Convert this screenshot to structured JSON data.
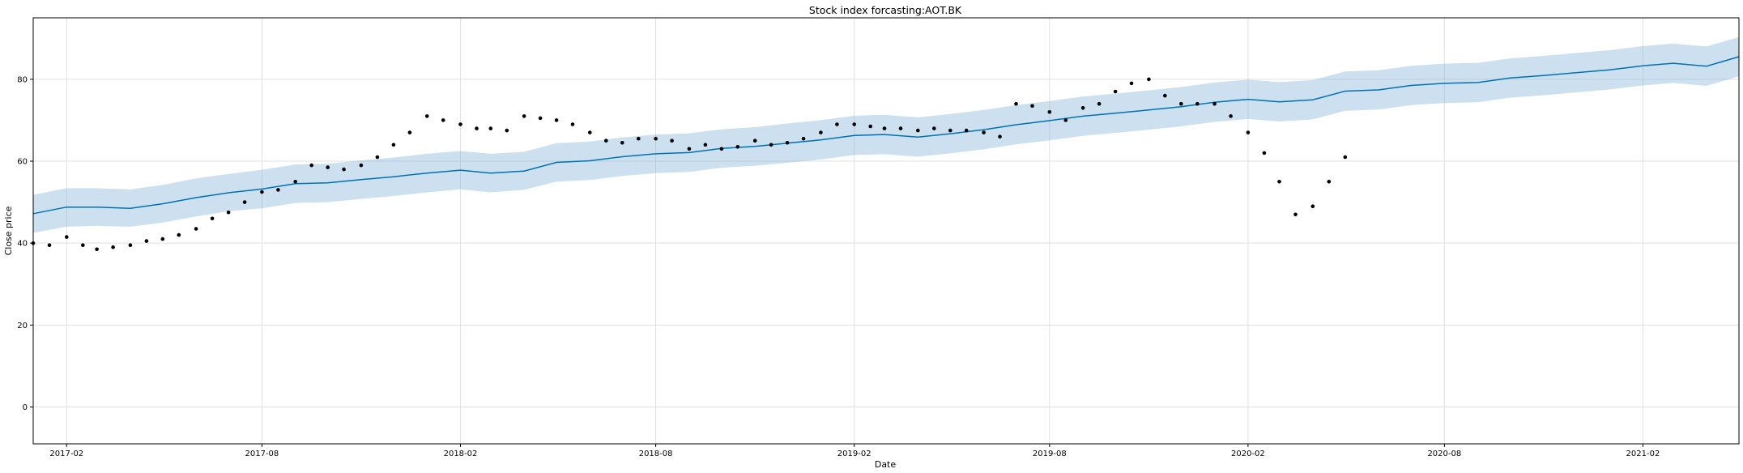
{
  "chart_data": {
    "type": "scatter",
    "title": "Stock index forcasting:AOT.BK",
    "xlabel": "Date",
    "ylabel": "Close price",
    "grid": true,
    "xlim": [
      "2017-01-01",
      "2021-05-01"
    ],
    "ylim": [
      -9,
      95
    ],
    "x_ticks": [
      "2017-02",
      "2017-08",
      "2018-02",
      "2018-08",
      "2019-02",
      "2019-08",
      "2020-02",
      "2020-08",
      "2021-02"
    ],
    "y_ticks": [
      0,
      20,
      40,
      60,
      80
    ],
    "colors": {
      "observed": "#000000",
      "forecast": "#0072B2",
      "interval": "#7FB2D8"
    },
    "observed": {
      "dates": [
        "2017-01-01",
        "2017-01-16",
        "2017-02-01",
        "2017-02-16",
        "2017-03-01",
        "2017-03-16",
        "2017-04-01",
        "2017-04-16",
        "2017-05-01",
        "2017-05-16",
        "2017-06-01",
        "2017-06-16",
        "2017-07-01",
        "2017-07-16",
        "2017-08-01",
        "2017-08-16",
        "2017-09-01",
        "2017-09-16",
        "2017-10-01",
        "2017-10-16",
        "2017-11-01",
        "2017-11-16",
        "2017-12-01",
        "2017-12-16",
        "2018-01-01",
        "2018-01-16",
        "2018-02-01",
        "2018-02-16",
        "2018-03-01",
        "2018-03-16",
        "2018-04-01",
        "2018-04-16",
        "2018-05-01",
        "2018-05-16",
        "2018-06-01",
        "2018-06-16",
        "2018-07-01",
        "2018-07-16",
        "2018-08-01",
        "2018-08-16",
        "2018-09-01",
        "2018-09-16",
        "2018-10-01",
        "2018-10-16",
        "2018-11-01",
        "2018-11-16",
        "2018-12-01",
        "2018-12-16",
        "2019-01-01",
        "2019-01-16",
        "2019-02-01",
        "2019-02-16",
        "2019-03-01",
        "2019-03-16",
        "2019-04-01",
        "2019-04-16",
        "2019-05-01",
        "2019-05-16",
        "2019-06-01",
        "2019-06-16",
        "2019-07-01",
        "2019-07-16",
        "2019-08-01",
        "2019-08-16",
        "2019-09-01",
        "2019-09-16",
        "2019-10-01",
        "2019-10-16",
        "2019-11-01",
        "2019-11-16",
        "2019-12-01",
        "2019-12-16",
        "2020-01-01",
        "2020-01-16",
        "2020-02-01",
        "2020-02-16",
        "2020-03-01",
        "2020-03-16",
        "2020-04-01",
        "2020-04-16",
        "2020-05-01"
      ],
      "close": [
        40,
        39.5,
        41.5,
        39.5,
        38.5,
        39,
        39.5,
        40.5,
        41,
        42,
        43.5,
        46,
        47.5,
        50,
        52.5,
        53,
        55,
        59,
        58.5,
        58,
        59,
        61,
        64,
        67,
        71,
        70,
        69,
        68,
        68,
        67.5,
        71,
        70.5,
        70,
        69,
        67,
        65,
        64.5,
        65.5,
        65.5,
        65,
        63,
        64,
        63,
        63.5,
        65,
        64,
        64.5,
        65.5,
        67,
        69,
        69,
        68.5,
        68,
        68,
        67.5,
        68,
        67.5,
        67.5,
        67,
        66,
        74,
        73.5,
        72,
        70,
        73,
        74,
        77,
        79,
        80,
        76,
        74,
        74,
        74,
        71,
        67,
        62,
        55,
        47,
        49,
        55,
        61
      ]
    },
    "forecast": {
      "dates": [
        "2017-01-01",
        "2017-02-01",
        "2017-03-01",
        "2017-04-01",
        "2017-05-01",
        "2017-06-01",
        "2017-07-01",
        "2017-08-01",
        "2017-09-01",
        "2017-10-01",
        "2017-11-01",
        "2017-12-01",
        "2018-01-01",
        "2018-02-01",
        "2018-03-01",
        "2018-04-01",
        "2018-05-01",
        "2018-06-01",
        "2018-07-01",
        "2018-08-01",
        "2018-09-01",
        "2018-10-01",
        "2018-11-01",
        "2018-12-01",
        "2019-01-01",
        "2019-02-01",
        "2019-03-01",
        "2019-04-01",
        "2019-05-01",
        "2019-06-01",
        "2019-07-01",
        "2019-08-01",
        "2019-09-01",
        "2019-10-01",
        "2019-11-01",
        "2019-12-01",
        "2020-01-01",
        "2020-02-01",
        "2020-03-01",
        "2020-04-01",
        "2020-05-01",
        "2020-06-01",
        "2020-07-01",
        "2020-08-01",
        "2020-09-01",
        "2020-10-01",
        "2020-11-01",
        "2020-12-01",
        "2021-01-01",
        "2021-02-01",
        "2021-03-01",
        "2021-04-01",
        "2021-05-01"
      ],
      "yhat": [
        47.2,
        48.8,
        48.8,
        48.5,
        49.6,
        51.1,
        52.3,
        53.2,
        54.5,
        54.7,
        55.5,
        56.2,
        57.1,
        57.8,
        57.1,
        57.6,
        59.7,
        60.1,
        61.1,
        61.8,
        62.1,
        63.1,
        63.6,
        64.4,
        65.2,
        66.3,
        66.5,
        65.9,
        66.7,
        67.7,
        68.9,
        69.9,
        71,
        71.7,
        72.5,
        73.3,
        74.4,
        75.1,
        74.5,
        75,
        77.1,
        77.4,
        78.5,
        79,
        79.2,
        80.3,
        80.9,
        81.6,
        82.3,
        83.3,
        83.9,
        83.2,
        85.5
      ],
      "lower": [
        42.5,
        44,
        44.2,
        44,
        45,
        46.5,
        47.8,
        48.5,
        49.8,
        50,
        50.8,
        51.5,
        52.4,
        53.1,
        52.4,
        53,
        55,
        55.4,
        56.4,
        57.1,
        57.4,
        58.4,
        58.9,
        59.6,
        60.4,
        61.5,
        61.7,
        61.1,
        61.9,
        62.9,
        64.1,
        65.1,
        66.2,
        66.9,
        67.7,
        68.5,
        69.6,
        70.3,
        69.7,
        70.2,
        72.3,
        72.6,
        73.7,
        74.2,
        74.4,
        75.5,
        76.1,
        76.8,
        77.5,
        78.5,
        79.1,
        78.4,
        80.7
      ],
      "upper": [
        51.8,
        53.4,
        53.4,
        53.1,
        54.2,
        55.8,
        56.9,
        57.9,
        59.2,
        59.4,
        60.2,
        60.9,
        61.8,
        62.5,
        61.8,
        62.3,
        64.4,
        64.8,
        65.8,
        66.5,
        66.8,
        67.8,
        68.3,
        69.2,
        70,
        71.1,
        71.3,
        70.7,
        71.5,
        72.5,
        73.7,
        74.7,
        75.8,
        76.5,
        77.3,
        78.1,
        79.2,
        79.9,
        79.3,
        79.8,
        81.9,
        82.2,
        83.3,
        83.8,
        84,
        85.1,
        85.7,
        86.4,
        87.1,
        88.1,
        88.7,
        88,
        90.3
      ]
    }
  }
}
